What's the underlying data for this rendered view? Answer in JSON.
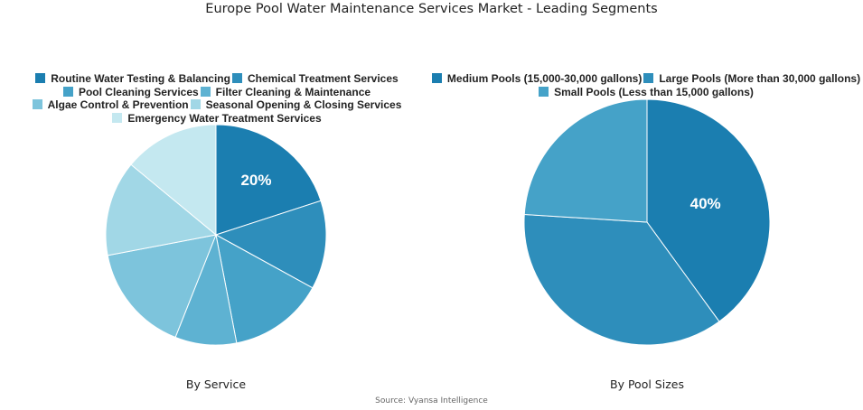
{
  "title": "Europe Pool Water Maintenance Services Market - Leading Segments",
  "source": "Source: Vyansa Intelligence",
  "chart_data": [
    {
      "type": "pie",
      "subtitle": "By Service",
      "categories": [
        "Routine Water Testing & Balancing",
        "Chemical Treatment Services",
        "Pool Cleaning Services",
        "Filter Cleaning & Maintenance",
        "Algae Control & Prevention",
        "Seasonal Opening & Closing Services",
        "Emergency Water Treatment Services"
      ],
      "values": [
        20,
        13,
        14,
        9,
        16,
        14,
        14
      ],
      "colors": [
        "#1b7eb0",
        "#2e8ebb",
        "#45a2c8",
        "#5eb2d2",
        "#7dc4dc",
        "#a1d7e6",
        "#c4e8f0"
      ],
      "data_labels": [
        "20%",
        "",
        "",
        "",
        "",
        "",
        ""
      ],
      "legend": "top"
    },
    {
      "type": "pie",
      "subtitle": "By Pool Sizes",
      "categories": [
        "Medium Pools (15,000-30,000 gallons)",
        "Large Pools (More than 30,000 gallons)",
        "Small Pools (Less than 15,000 gallons)"
      ],
      "values": [
        40,
        36,
        24
      ],
      "colors": [
        "#1b7eb0",
        "#2e8ebb",
        "#45a2c8"
      ],
      "data_labels": [
        "40%",
        "",
        ""
      ],
      "legend": "top"
    }
  ]
}
